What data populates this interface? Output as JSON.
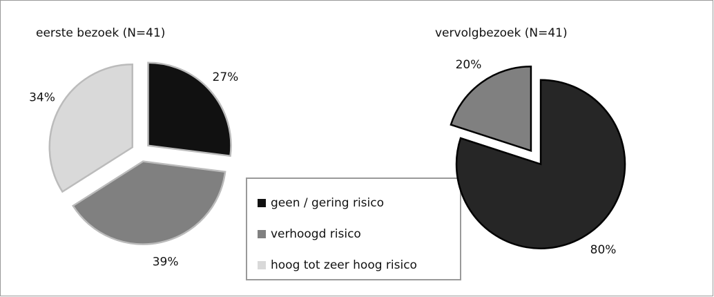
{
  "chart_data": [
    {
      "type": "pie",
      "title": "eerste bezoek (N=41)",
      "categories": [
        "geen / gering  risico",
        "verhoogd risico",
        "hoog tot zeer hoog risico"
      ],
      "values": [
        27,
        39,
        34
      ],
      "value_labels": [
        "27%",
        "39%",
        "34%"
      ],
      "colors": [
        "#111111",
        "#808080",
        "#d9d9d9"
      ],
      "legend": true
    },
    {
      "type": "pie",
      "title": "vervolgbezoek (N=41)",
      "values": [
        80,
        20
      ],
      "value_labels": [
        "80%",
        "20%"
      ],
      "colors": [
        "#262626",
        "#808080"
      ]
    }
  ]
}
